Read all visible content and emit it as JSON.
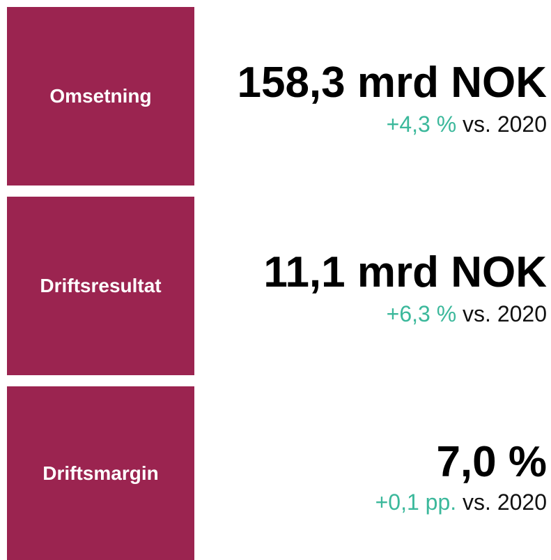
{
  "kpis": [
    {
      "label": "Omsetning",
      "value": "158,3 mrd NOK",
      "change": "+4,3 %",
      "comparison": "vs. 2020"
    },
    {
      "label": "Driftsresultat",
      "value": "11,1 mrd NOK",
      "change": "+6,3 %",
      "comparison": "vs. 2020"
    },
    {
      "label": "Driftsmargin",
      "value": "7,0 %",
      "change": "+0,1 pp.",
      "comparison": "vs. 2020"
    }
  ]
}
